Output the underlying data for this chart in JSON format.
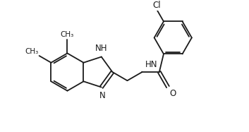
{
  "background": "#ffffff",
  "line_color": "#1a1a1a",
  "line_width": 1.3,
  "font_size": 8.5,
  "figsize": [
    3.53,
    1.87
  ],
  "dpi": 100,
  "xlim": [
    0,
    10
  ],
  "ylim": [
    0,
    5.3
  ]
}
